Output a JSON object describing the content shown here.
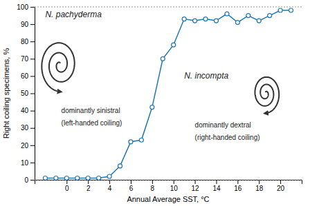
{
  "chart_data": {
    "type": "line",
    "marker": "circle",
    "grid": false,
    "x": [
      -2,
      -1,
      0,
      1,
      2,
      3,
      4,
      5,
      6,
      7,
      8,
      9,
      10,
      11,
      12,
      13,
      14,
      15,
      16,
      17,
      18,
      19,
      20,
      21
    ],
    "values": [
      1,
      1,
      1,
      1,
      1,
      1,
      2,
      8,
      22,
      23,
      42,
      70,
      78,
      93,
      92,
      93,
      92,
      96,
      91,
      95,
      92,
      95,
      98,
      98
    ],
    "xlim": [
      -3,
      22
    ],
    "ylim": [
      0,
      100
    ],
    "xticks": [
      0,
      2,
      4,
      6,
      8,
      10,
      12,
      14,
      16,
      18,
      20
    ],
    "yticks": [
      0,
      10,
      20,
      30,
      40,
      50,
      60,
      70,
      80,
      90,
      100
    ],
    "xlabel": "Annual Average SST, °C",
    "ylabel": "Right coiling specimens, %",
    "hlines": [
      0,
      100
    ],
    "annotations": [
      "N. pachyderma",
      "N. incompta",
      "dominantly sinistral",
      "(left-handed coiling)",
      "dominantly dextral",
      "(right-handed coiling)"
    ]
  }
}
